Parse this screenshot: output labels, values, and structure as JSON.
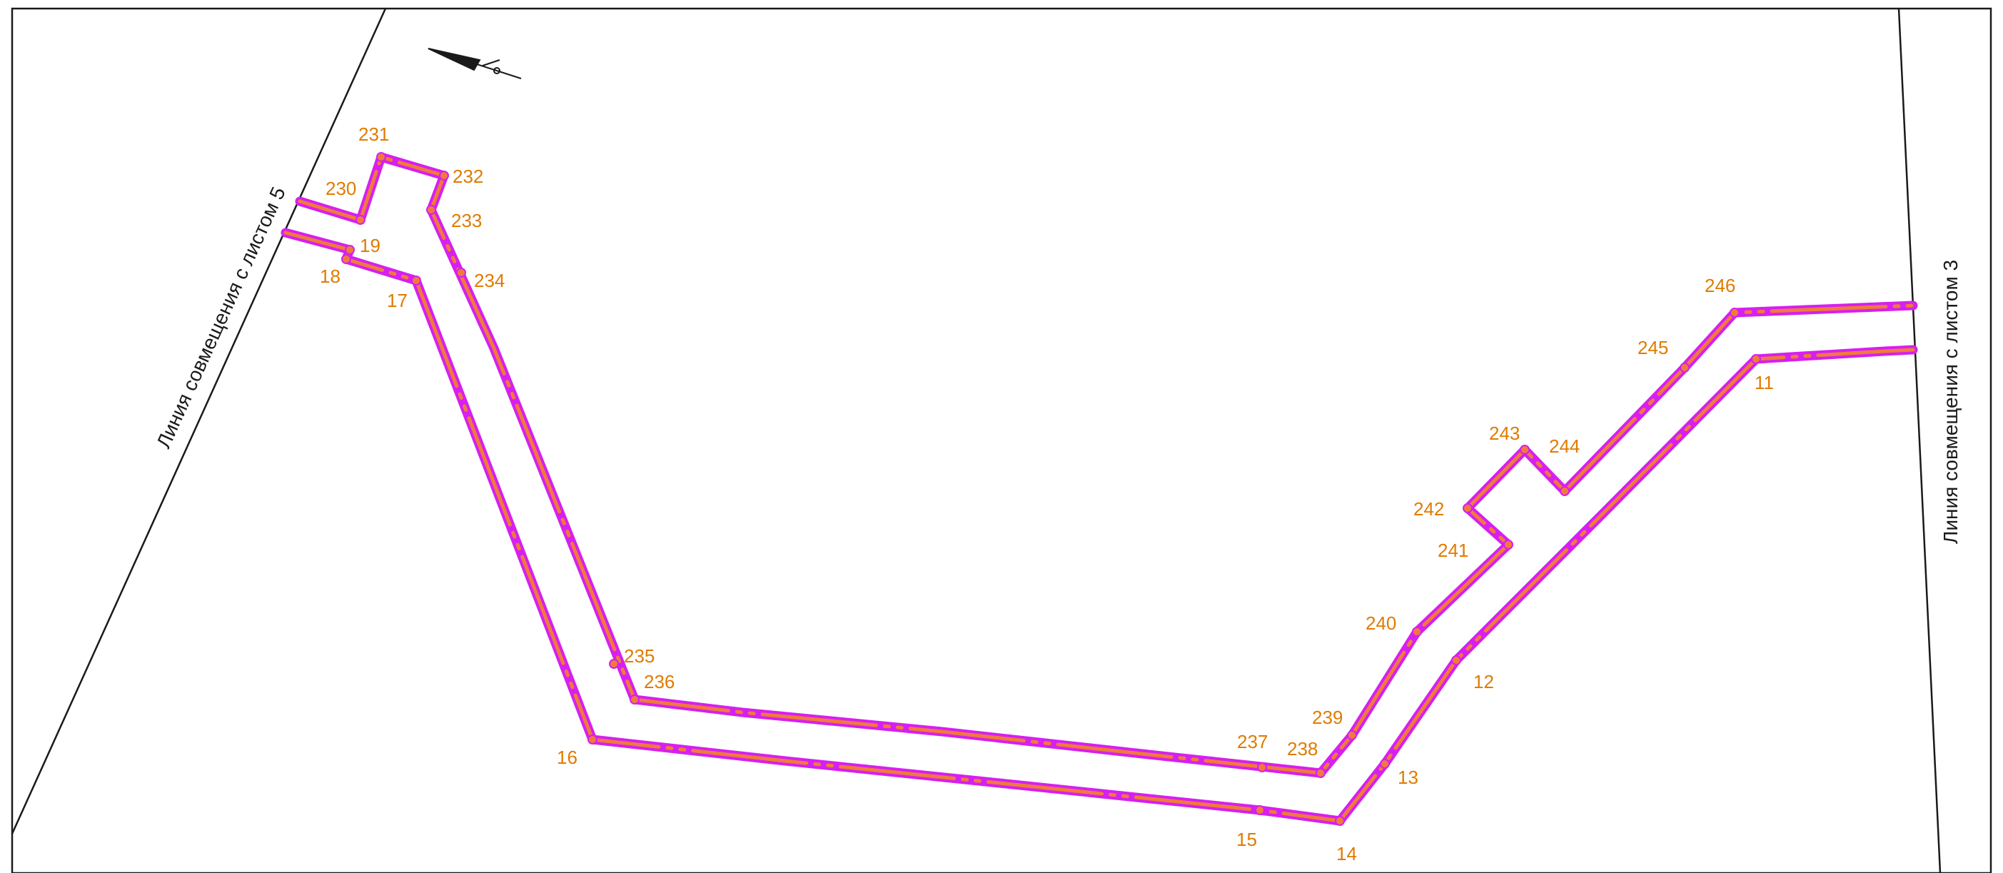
{
  "map": {
    "colors": {
      "boundary_outer": "#d61ff0",
      "boundary_inner": "#f07a3c",
      "label": "#e07b00",
      "frame": "#1a1a1a"
    },
    "sheet_lines": {
      "left_label": "Линия совмещения с листом 5",
      "right_label": "Линия совмещения с листом 3"
    },
    "north_arrow_icon": "north-arrow-icon",
    "point_labels": {
      "p11": "11",
      "p12": "12",
      "p13": "13",
      "p14": "14",
      "p15": "15",
      "p16": "16",
      "p17": "17",
      "p18": "18",
      "p19": "19",
      "p230": "230",
      "p231": "231",
      "p232": "232",
      "p233": "233",
      "p234": "234",
      "p235": "235",
      "p236": "236",
      "p237": "237",
      "p238": "238",
      "p239": "239",
      "p240": "240",
      "p241": "241",
      "p242": "242",
      "p243": "243",
      "p244": "244",
      "p245": "245",
      "p246": "246"
    }
  }
}
